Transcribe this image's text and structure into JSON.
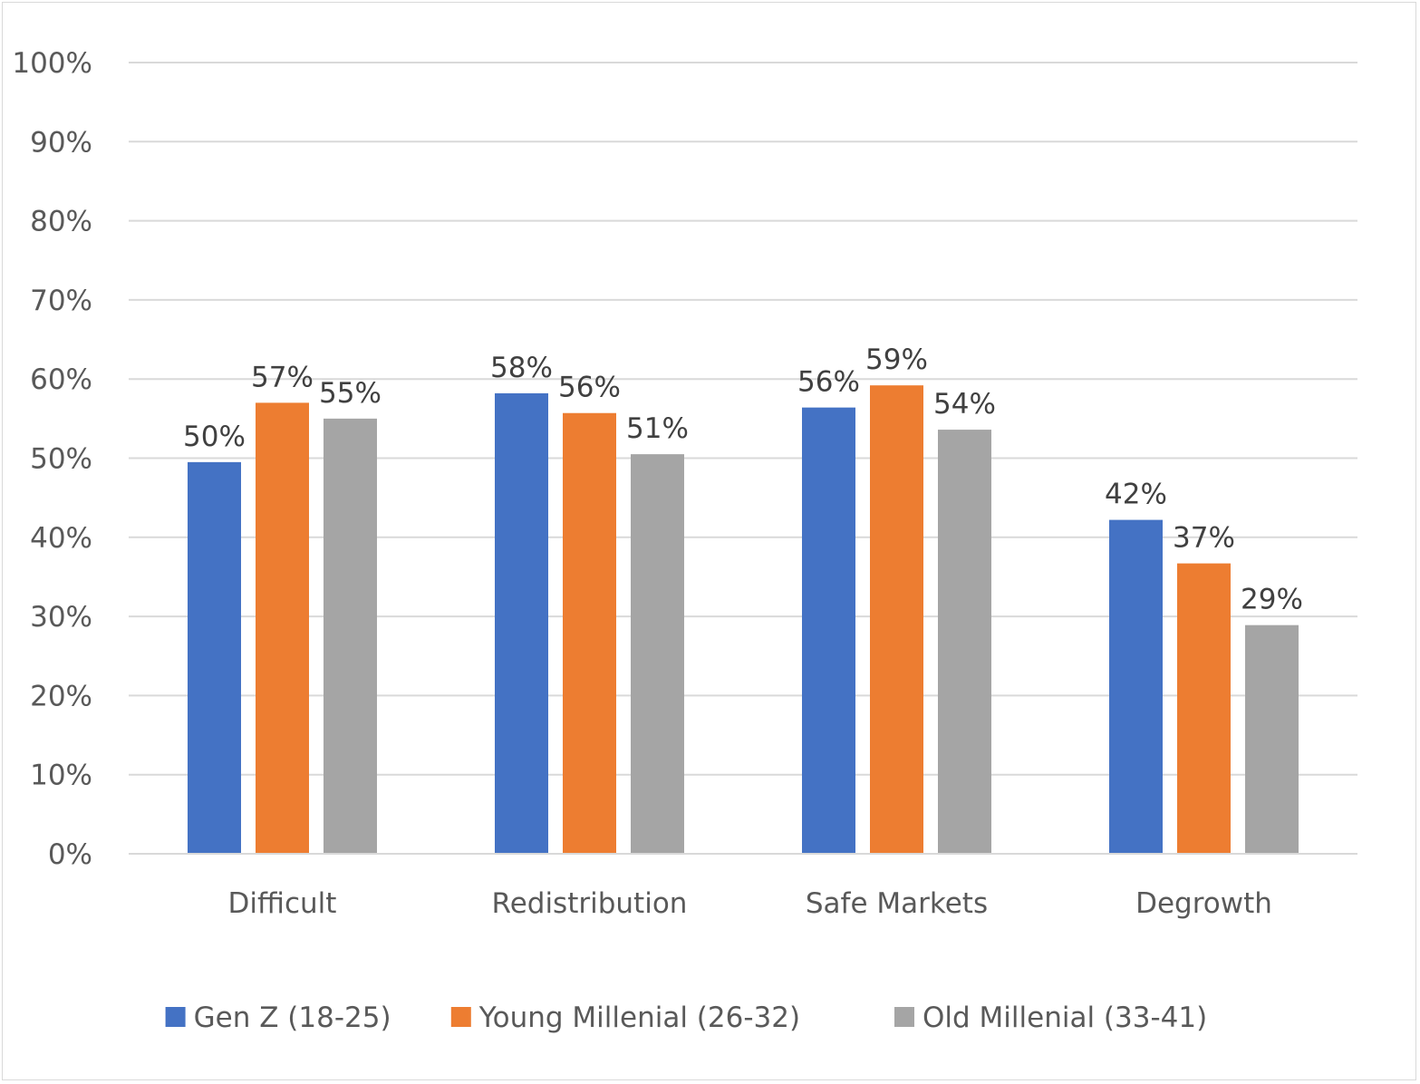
{
  "chart_data": {
    "type": "bar",
    "categories": [
      "Difficult",
      "Redistribution",
      "Safe Markets",
      "Degrowth"
    ],
    "series": [
      {
        "name": "Gen Z (18-25)",
        "color": "#4472C4",
        "values": [
          49.5,
          58.2,
          56.4,
          42.2
        ],
        "labels": [
          "50%",
          "58%",
          "56%",
          "42%"
        ]
      },
      {
        "name": "Young Millenial (26-32)",
        "color": "#ED7D31",
        "values": [
          57.0,
          55.7,
          59.2,
          36.7
        ],
        "labels": [
          "57%",
          "56%",
          "59%",
          "37%"
        ]
      },
      {
        "name": "Old Millenial (33-41)",
        "color": "#A5A5A5",
        "values": [
          55.0,
          50.5,
          53.6,
          28.9
        ],
        "labels": [
          "55%",
          "51%",
          "54%",
          "29%"
        ]
      }
    ],
    "ylim": [
      0,
      100
    ],
    "yticks": [
      "0%",
      "10%",
      "20%",
      "30%",
      "40%",
      "50%",
      "60%",
      "70%",
      "80%",
      "90%",
      "100%"
    ],
    "grid": true,
    "legend": "bottom",
    "title": "",
    "xlabel": "",
    "ylabel": ""
  }
}
